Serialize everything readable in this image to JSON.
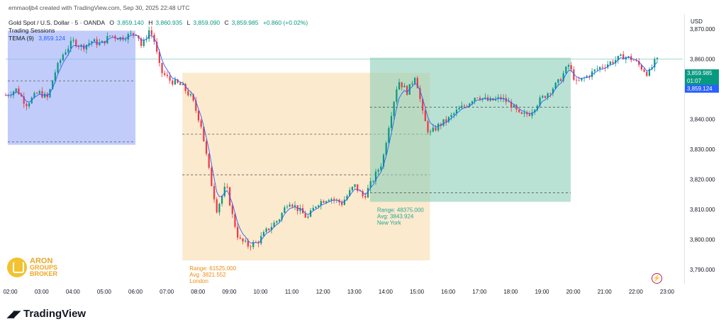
{
  "header": {
    "creator": "emmaoljb4 created with TradingView.com, Sep 30, 2025 22:48 UTC",
    "symbol": "Gold Spot / U.S. Dollar · 5 · OANDA",
    "o_label": "O",
    "o_value": "3,859.140",
    "h_label": "H",
    "h_value": "3,860.935",
    "l_label": "L",
    "l_value": "3,859.090",
    "c_label": "C",
    "c_value": "3,859.985",
    "change": "+0.860 (+0.02%)",
    "indicator_sessions": "Trading Sessions",
    "tema_label": "TEMA (9)",
    "tema_value": "3,859.124"
  },
  "price_axis": {
    "currency": "USD",
    "last_price": "3,859.985",
    "countdown": "01:07",
    "tema_price": "3,859.124"
  },
  "colors": {
    "up": "#089981",
    "down": "#f23645",
    "tema": "#2962ff",
    "asia_session": "#9fb0f7",
    "london_session": "#fad9a6",
    "newyork_session": "#8ccfb8",
    "session_text": "#ef8b10",
    "ny_text": "#26a69a"
  },
  "sessions": [
    {
      "name": "",
      "start": "01:55",
      "end": "06:00",
      "high": 3869.5,
      "low": 3831.5,
      "mid_dashed": 3852.8,
      "low_dashed": 3832.5,
      "label_lines": []
    },
    {
      "name": "London",
      "start": "07:30",
      "end": "15:25",
      "high": 3855.5,
      "low": 3793.0,
      "mid_dashed": 3835.0,
      "low_dashed": 3821.5,
      "label_lines": [
        "Range: 61525.000",
        "Avg: 3821.552",
        "London"
      ]
    },
    {
      "name": "New York",
      "start": "13:30",
      "end": "19:55",
      "high": 3860.5,
      "low": 3812.5,
      "mid_dashed": 3844.0,
      "low_dashed": 3815.5,
      "label_lines": [
        "Range: 48375.000",
        "Avg: 3843.924",
        "New York"
      ]
    }
  ],
  "branding": {
    "tradingview": "TradingView",
    "broker_line1": "ARON",
    "broker_line2": "GROUPS",
    "broker_line3": "BROKER"
  },
  "chart_data": {
    "type": "candlestick",
    "title": "Gold Spot / U.S. Dollar · 5 · OANDA",
    "y_ticks": [
      3790,
      3800,
      3810,
      3820,
      3830,
      3840,
      3850,
      3860,
      3870
    ],
    "y_tick_labels": [
      "3,790.000",
      "3,800.000",
      "3,810.000",
      "3,820.000",
      "3,830.000",
      "3,840.000",
      "3,850.000",
      "3,860.000",
      "3,870.000"
    ],
    "x_tick_labels": [
      "02:00",
      "03:00",
      "04:00",
      "05:00",
      "06:00",
      "07:00",
      "08:00",
      "09:00",
      "10:00",
      "11:00",
      "12:00",
      "13:00",
      "14:00",
      "15:00",
      "16:00",
      "17:00",
      "18:00",
      "19:00",
      "20:00",
      "21:00",
      "22:00",
      "23:00"
    ],
    "ylim": [
      3785,
      3875
    ],
    "x_range_hours": [
      1.85,
      23.5
    ],
    "price_path": [
      [
        1.85,
        3848
      ],
      [
        2.2,
        3850
      ],
      [
        2.5,
        3845
      ],
      [
        2.9,
        3849
      ],
      [
        3.2,
        3847
      ],
      [
        3.4,
        3855
      ],
      [
        3.7,
        3862
      ],
      [
        4.0,
        3866
      ],
      [
        4.3,
        3864
      ],
      [
        4.6,
        3866
      ],
      [
        4.9,
        3865
      ],
      [
        5.2,
        3868
      ],
      [
        5.5,
        3867
      ],
      [
        5.8,
        3868
      ],
      [
        6.05,
        3869
      ],
      [
        6.2,
        3864
      ],
      [
        6.45,
        3870
      ],
      [
        6.6,
        3866
      ],
      [
        6.8,
        3856
      ],
      [
        7.1,
        3853
      ],
      [
        7.5,
        3851
      ],
      [
        7.8,
        3847
      ],
      [
        8.1,
        3838
      ],
      [
        8.4,
        3820
      ],
      [
        8.6,
        3810
      ],
      [
        8.9,
        3818
      ],
      [
        9.1,
        3808
      ],
      [
        9.3,
        3800
      ],
      [
        9.6,
        3798
      ],
      [
        9.9,
        3799
      ],
      [
        10.2,
        3803
      ],
      [
        10.6,
        3807
      ],
      [
        10.9,
        3813
      ],
      [
        11.2,
        3810
      ],
      [
        11.5,
        3807
      ],
      [
        11.8,
        3812
      ],
      [
        12.2,
        3814
      ],
      [
        12.6,
        3812
      ],
      [
        13.0,
        3818
      ],
      [
        13.3,
        3814
      ],
      [
        13.6,
        3820
      ],
      [
        13.9,
        3826
      ],
      [
        14.1,
        3838
      ],
      [
        14.4,
        3853
      ],
      [
        14.7,
        3849
      ],
      [
        14.95,
        3855
      ],
      [
        15.2,
        3841
      ],
      [
        15.4,
        3835
      ],
      [
        15.7,
        3838
      ],
      [
        16.0,
        3840
      ],
      [
        16.3,
        3843
      ],
      [
        16.6,
        3845
      ],
      [
        16.9,
        3848
      ],
      [
        17.3,
        3846
      ],
      [
        17.7,
        3847
      ],
      [
        18.0,
        3845
      ],
      [
        18.3,
        3841
      ],
      [
        18.6,
        3842
      ],
      [
        18.9,
        3846
      ],
      [
        19.2,
        3849
      ],
      [
        19.5,
        3852
      ],
      [
        19.85,
        3858
      ],
      [
        20.1,
        3852
      ],
      [
        20.4,
        3854
      ],
      [
        20.8,
        3857
      ],
      [
        21.2,
        3859
      ],
      [
        21.6,
        3861
      ],
      [
        21.9,
        3860
      ],
      [
        22.2,
        3857
      ],
      [
        22.4,
        3855
      ],
      [
        22.6,
        3859
      ],
      [
        22.75,
        3859.985
      ]
    ]
  }
}
